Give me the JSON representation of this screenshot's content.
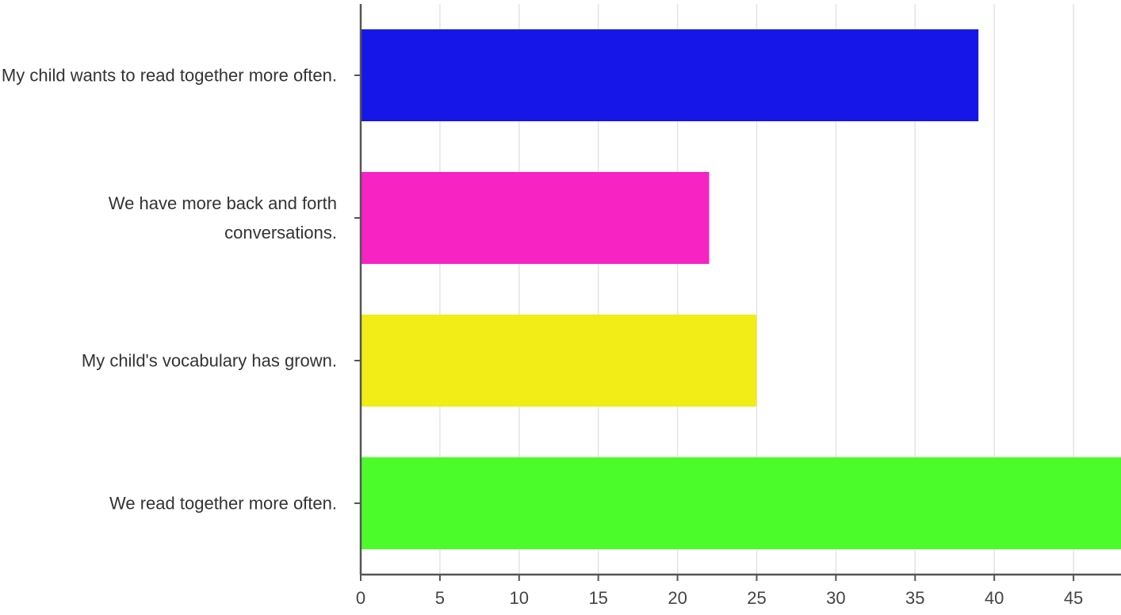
{
  "chart_data": {
    "type": "barh",
    "categories": [
      "My child wants to read together more often.",
      "We have more back and forth conversations.",
      "My child's vocabulary has grown.",
      "We read together more often."
    ],
    "values": [
      39,
      22,
      25,
      48
    ],
    "colors": [
      "#1616e8",
      "#f723c3",
      "#f2ec17",
      "#4cfc2a"
    ],
    "xlim": [
      0,
      48
    ],
    "xticks": [
      0,
      5,
      10,
      15,
      20,
      25,
      30,
      35,
      40,
      45
    ],
    "grid": true
  }
}
